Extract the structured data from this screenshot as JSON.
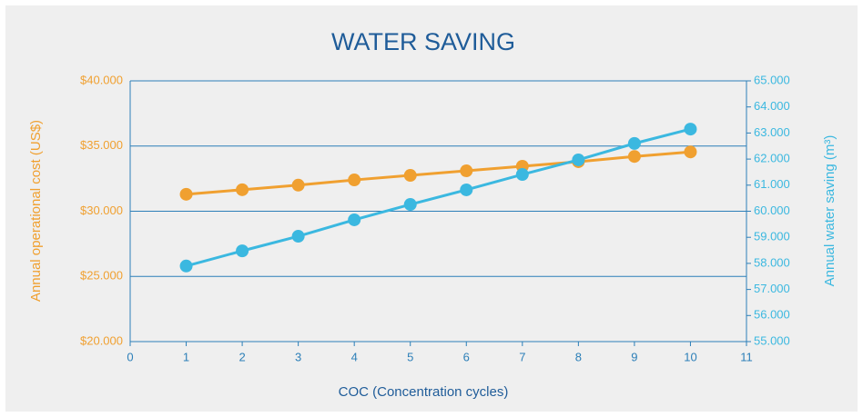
{
  "chart_data": {
    "type": "line",
    "title": "WATER SAVING",
    "x_label": "COC (Concentration cycles)",
    "y_label": "Annual operational cost (US$)",
    "y2_label": "Annual water saving (m³)",
    "x": [
      1,
      2,
      3,
      4,
      5,
      6,
      7,
      8,
      9,
      10
    ],
    "xlim": [
      0,
      11
    ],
    "xticks": [
      0,
      1,
      2,
      3,
      4,
      5,
      6,
      7,
      8,
      9,
      10,
      11
    ],
    "ylim": [
      20000,
      40000
    ],
    "yticks": [
      {
        "value": 20000,
        "label": "$20.000"
      },
      {
        "value": 25000,
        "label": "$25.000"
      },
      {
        "value": 30000,
        "label": "$30.000"
      },
      {
        "value": 35000,
        "label": "$35.000"
      },
      {
        "value": 40000,
        "label": "$40.000"
      }
    ],
    "y2lim": [
      55000,
      65000
    ],
    "y2ticks": [
      {
        "value": 55000,
        "label": "55.000"
      },
      {
        "value": 56000,
        "label": "56.000"
      },
      {
        "value": 57000,
        "label": "57.000"
      },
      {
        "value": 58000,
        "label": "58.000"
      },
      {
        "value": 59000,
        "label": "59.000"
      },
      {
        "value": 60000,
        "label": "60.000"
      },
      {
        "value": 61000,
        "label": "61.000"
      },
      {
        "value": 62000,
        "label": "62.000"
      },
      {
        "value": 63000,
        "label": "63.000"
      },
      {
        "value": 64000,
        "label": "64.000"
      },
      {
        "value": 65000,
        "label": "65.000"
      }
    ],
    "grid": true,
    "series": [
      {
        "color": "#f0a030",
        "values": [
          31300,
          31650,
          32000,
          32400,
          32750,
          33100,
          33450,
          33800,
          34200,
          34550
        ]
      },
      {
        "color": "#3bb8e0",
        "axis": "y2",
        "values": [
          57900,
          58480,
          59040,
          59670,
          60260,
          60820,
          61410,
          61970,
          62600,
          63150
        ]
      }
    ]
  }
}
